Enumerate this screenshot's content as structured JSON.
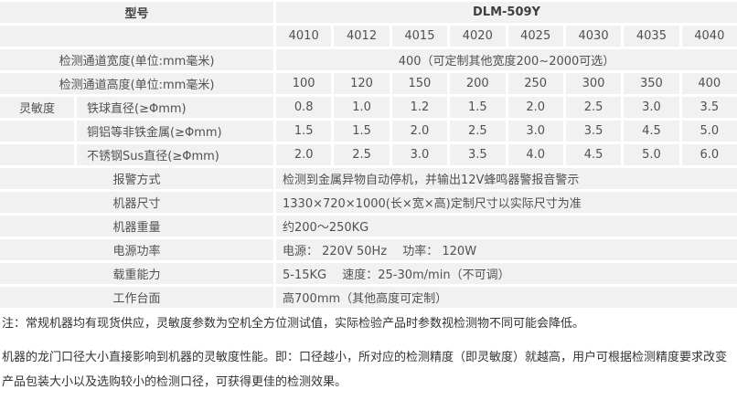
{
  "table": {
    "header": {
      "label": "型号",
      "value": "DLM-509Y"
    },
    "models_row": {
      "values": [
        "4010",
        "4012",
        "4015",
        "4020",
        "4025",
        "4030",
        "4035",
        "4040"
      ]
    },
    "channel_width": {
      "label": "检测通道宽度(单位:mm毫米)",
      "value": "400（可定制其他宽度200~2000可选）"
    },
    "channel_height": {
      "label": "检测通道高度(单位:mm毫米)",
      "values": [
        "100",
        "120",
        "150",
        "200",
        "250",
        "300",
        "350",
        "400"
      ]
    },
    "sensitivity": {
      "group_label": "灵敏度",
      "rows": [
        {
          "label": "铁球直径(≥Φmm)",
          "values": [
            "0.8",
            "1.0",
            "1.2",
            "1.5",
            "2.0",
            "2.5",
            "3.0",
            "3.5"
          ]
        },
        {
          "label": "铜铝等非铁金属(≥Φmm)",
          "values": [
            "1.5",
            "1.5",
            "2.0",
            "2.5",
            "3.0",
            "3.5",
            "4.5",
            "5.0"
          ]
        },
        {
          "label": "不锈钢Sus直径(≥Φmm)",
          "values": [
            "2.0",
            "2.5",
            "3.0",
            "3.5",
            "4.0",
            "4.5",
            "5.0",
            "6.0"
          ]
        }
      ]
    },
    "info_rows": [
      {
        "label": "报警方式",
        "value": "检测到金属异物自动停机，并输出12V蜂鸣器警报音警示"
      },
      {
        "label": "机器尺寸",
        "value": "1330×720×1000(长×宽×高)定制尺寸以实际尺寸为准"
      },
      {
        "label": "机器重量",
        "value": "约200～250KG"
      },
      {
        "label": "电源功率",
        "value": "电源：  220V 50Hz　  功率：  120W"
      },
      {
        "label": "载重能力",
        "value": "5-15KG　  速度：25-30m/min（不可调）"
      },
      {
        "label": "工作台面",
        "value": "高700mm（其他高度可定制）"
      }
    ]
  },
  "notes": {
    "note1": "注：常规机器均有现货供应，灵敏度参数为空机全方位测试值，实际检验产品时参数视检测物不同可能会降低。",
    "note2": "机器的龙门口径大小直接影响到机器的灵敏度性能。即：口径越小，所对应的检测精度（即灵敏度）就越高，用户可根据检测精度要求改变产品包装大小以及选购较小的检测口径，可获得更佳的检测效果。"
  },
  "colors": {
    "cell_background": "#f1f1f1",
    "separator": "#ffffff",
    "table_text": "#515151",
    "note_text": "#333333"
  }
}
